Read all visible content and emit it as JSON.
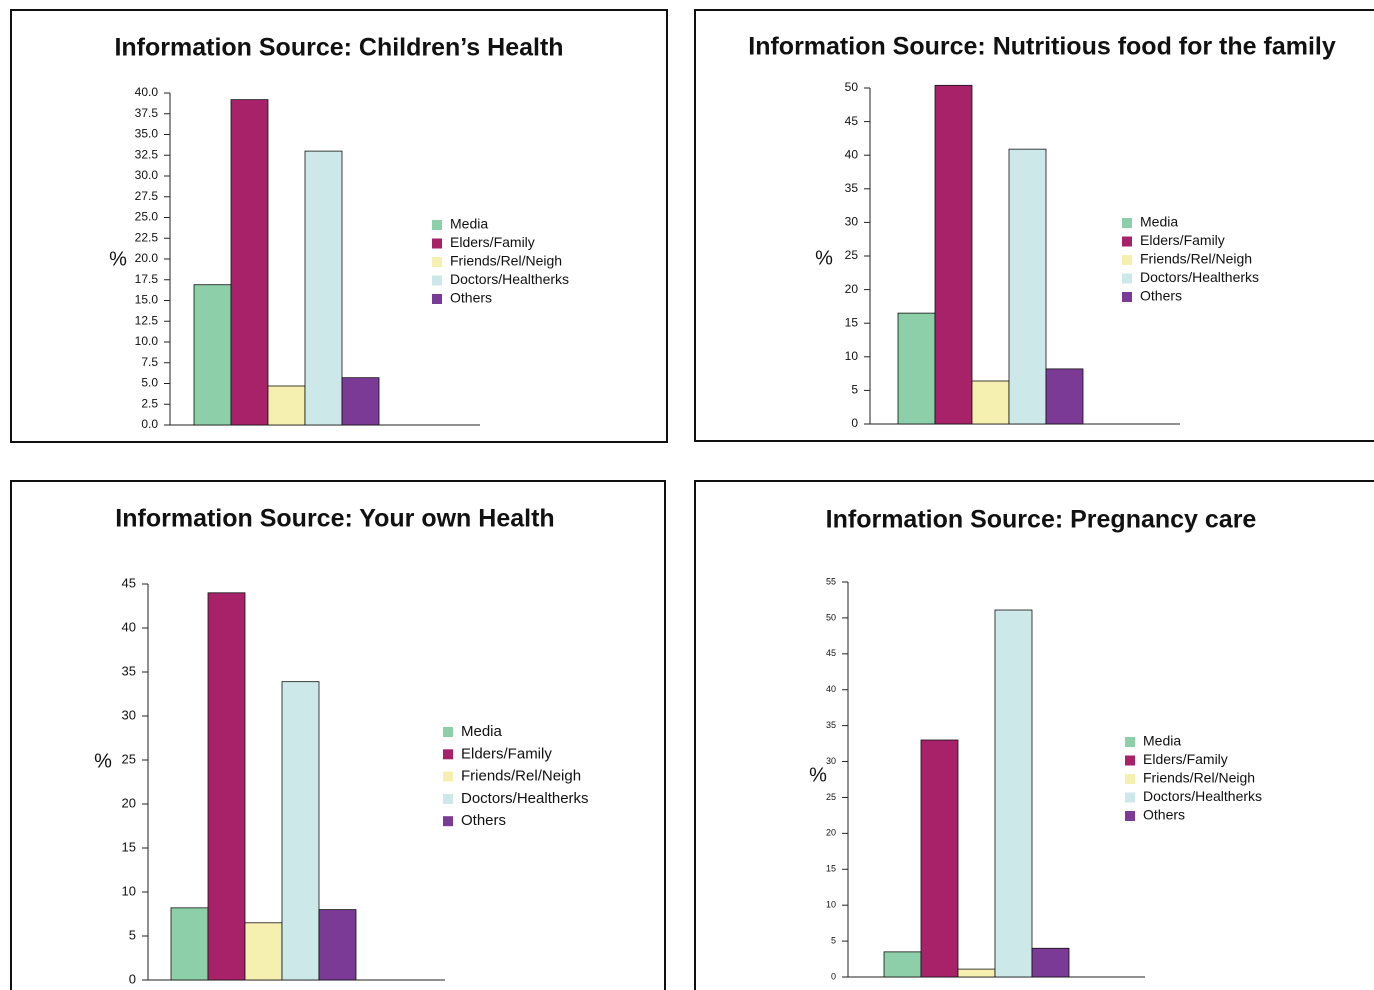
{
  "chart_data": [
    {
      "type": "bar",
      "title": "Information Source: Children’s Health",
      "ylabel": "%",
      "ylim": [
        0,
        40
      ],
      "yticks": [
        {
          "value": 0,
          "label": "0.0"
        },
        2.5,
        {
          "value": 5,
          "label": "5.0"
        },
        7.5,
        {
          "value": 10,
          "label": "10.0"
        },
        12.5,
        {
          "value": 15,
          "label": "15.0"
        },
        17.5,
        {
          "value": 20,
          "label": "20.0"
        },
        22.5,
        {
          "value": 25,
          "label": "25.0"
        },
        27.5,
        {
          "value": 30,
          "label": "30.0"
        },
        32.5,
        {
          "value": 35,
          "label": "35.0"
        },
        37.5,
        {
          "value": 40,
          "label": "40.0"
        }
      ],
      "series": [
        {
          "name": "Media",
          "color": "#8dcfa8",
          "values": [
            16.9
          ]
        },
        {
          "name": "Elders/Family",
          "color": "#a8226a",
          "values": [
            39.2
          ]
        },
        {
          "name": "Friends/Rel/Neigh",
          "color": "#f6f0b0",
          "values": [
            4.7
          ]
        },
        {
          "name": "Doctors/Healtherks",
          "color": "#cde8e8",
          "values": [
            33.0
          ]
        },
        {
          "name": "Others",
          "color": "#7b3a96",
          "values": [
            5.7
          ]
        }
      ]
    },
    {
      "type": "bar",
      "title": "Information Source: Nutritious food for the family",
      "ylabel": "%",
      "ylim": [
        0,
        50
      ],
      "yticks": [
        0,
        5,
        10,
        15,
        20,
        25,
        30,
        35,
        40,
        45,
        50
      ],
      "series": [
        {
          "name": "Media",
          "color": "#8dcfa8",
          "values": [
            16.5
          ]
        },
        {
          "name": "Elders/Family",
          "color": "#a8226a",
          "values": [
            50.4
          ]
        },
        {
          "name": "Friends/Rel/Neigh",
          "color": "#f6f0b0",
          "values": [
            6.4
          ]
        },
        {
          "name": "Doctors/Healtherks",
          "color": "#cde8e8",
          "values": [
            40.9
          ]
        },
        {
          "name": "Others",
          "color": "#7b3a96",
          "values": [
            8.2
          ]
        }
      ]
    },
    {
      "type": "bar",
      "title": "Information Source: Your own Health",
      "ylabel": "%",
      "ylim": [
        0,
        45
      ],
      "yticks": [
        0,
        5,
        10,
        15,
        20,
        25,
        30,
        35,
        40,
        45
      ],
      "series": [
        {
          "name": "Media",
          "color": "#8dcfa8",
          "values": [
            8.2
          ]
        },
        {
          "name": "Elders/Family",
          "color": "#a8226a",
          "values": [
            44.0
          ]
        },
        {
          "name": "Friends/Rel/Neigh",
          "color": "#f6f0b0",
          "values": [
            6.5
          ]
        },
        {
          "name": "Doctors/Healtherks",
          "color": "#cde8e8",
          "values": [
            33.9
          ]
        },
        {
          "name": "Others",
          "color": "#7b3a96",
          "values": [
            8.0
          ]
        }
      ]
    },
    {
      "type": "bar",
      "title": "Information Source: Pregnancy care",
      "ylabel": "%",
      "ylim": [
        0,
        55
      ],
      "yticks": [
        0,
        5,
        10,
        15,
        20,
        25,
        30,
        35,
        40,
        45,
        50,
        55
      ],
      "series": [
        {
          "name": "Media",
          "color": "#8dcfa8",
          "values": [
            3.5
          ]
        },
        {
          "name": "Elders/Family",
          "color": "#a8226a",
          "values": [
            33.0
          ]
        },
        {
          "name": "Friends/Rel/Neigh",
          "color": "#f6f0b0",
          "values": [
            1.1
          ]
        },
        {
          "name": "Doctors/Healtherks",
          "color": "#cde8e8",
          "values": [
            51.1
          ]
        },
        {
          "name": "Others",
          "color": "#7b3a96",
          "values": [
            4.0
          ]
        }
      ]
    }
  ]
}
